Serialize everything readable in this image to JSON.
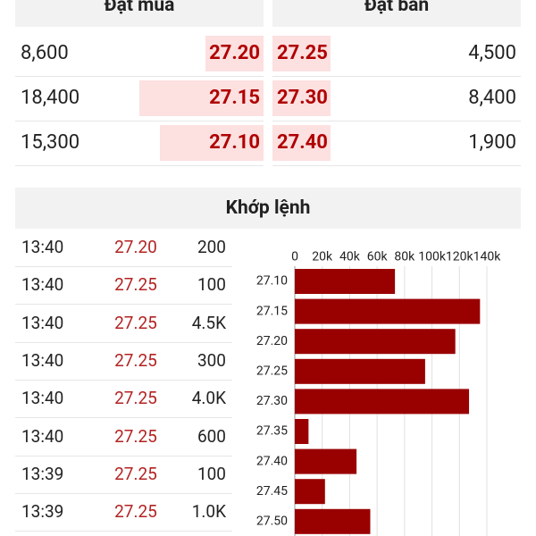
{
  "order_book": {
    "bid_title": "Đặt mua",
    "ask_title": "Đặt bán",
    "bids": [
      {
        "volume": {
          "value": 8600,
          "label": "8,600"
        },
        "price": "27.20"
      },
      {
        "volume": {
          "value": 18400,
          "label": "18,400"
        },
        "price": "27.15"
      },
      {
        "volume": {
          "value": 15300,
          "label": "15,300"
        },
        "price": "27.10"
      }
    ],
    "asks": [
      {
        "price": "27.25",
        "volume": {
          "value": 4500,
          "label": "4,500"
        }
      },
      {
        "price": "27.30",
        "volume": {
          "value": 8400,
          "label": "8,400"
        }
      },
      {
        "price": "27.40",
        "volume": {
          "value": 1900,
          "label": "1,900"
        }
      }
    ],
    "bar_color": "#fde0e0"
  },
  "trades": {
    "title": "Khớp lệnh",
    "rows": [
      [
        "13:40",
        "27.20",
        "200"
      ],
      [
        "13:40",
        "27.25",
        "100"
      ],
      [
        "13:40",
        "27.25",
        "4.5K"
      ],
      [
        "13:40",
        "27.25",
        "300"
      ],
      [
        "13:40",
        "27.25",
        "4.0K"
      ],
      [
        "13:40",
        "27.25",
        "600"
      ],
      [
        "13:39",
        "27.25",
        "100"
      ],
      [
        "13:39",
        "27.25",
        "1.0K"
      ]
    ]
  },
  "chart": {
    "type": "bar",
    "orientation": "horizontal",
    "categories": [
      "27.10",
      "27.15",
      "27.20",
      "27.25",
      "27.30",
      "27.35",
      "27.40",
      "27.45",
      "27.50"
    ],
    "values": [
      73000,
      135000,
      117000,
      95000,
      127000,
      10000,
      45000,
      22000,
      55000
    ],
    "color": "#990000",
    "xlim": [
      0,
      140000
    ],
    "xticks": [
      0,
      {
        "value": 20000,
        "label": "20k"
      },
      {
        "value": 40000,
        "label": "40k"
      },
      {
        "value": 60000,
        "label": "60k"
      },
      {
        "value": 80000,
        "label": "80k"
      },
      {
        "value": 100000,
        "label": "100k"
      },
      {
        "value": 120000,
        "label": "120k"
      },
      {
        "value": 140000,
        "label": "140k"
      }
    ],
    "grid": true
  }
}
